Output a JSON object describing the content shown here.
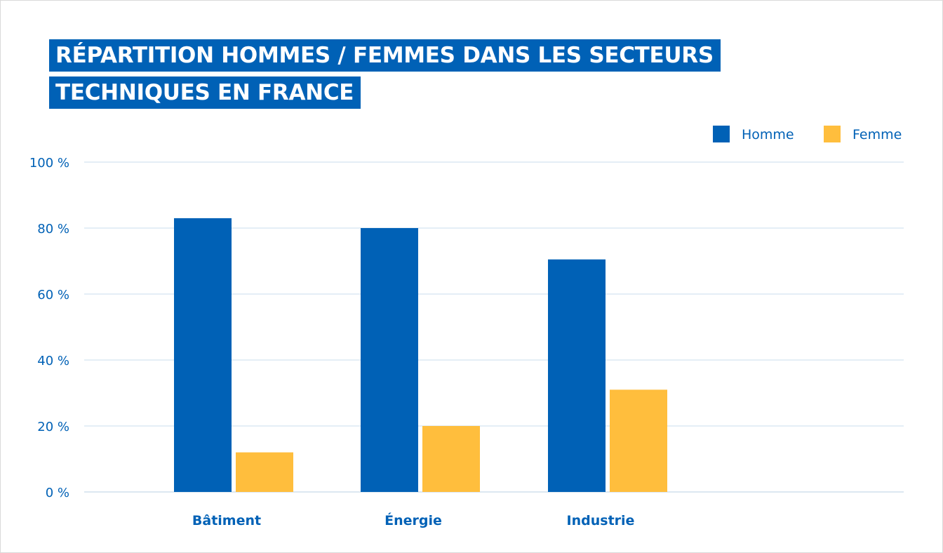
{
  "title_lines": [
    "RÉPARTITION HOMMES / FEMMES DANS LES SECTEURS",
    "TECHNIQUES EN FRANCE"
  ],
  "colors": {
    "homme": "#0061b6",
    "femme": "#ffbe3d",
    "text": "#0061b6",
    "grid": "#c9dcec"
  },
  "chart_data": {
    "type": "bar",
    "title": "RÉPARTITION HOMMES / FEMMES DANS LES SECTEURS TECHNIQUES EN FRANCE",
    "categories": [
      "Bâtiment",
      "Énergie",
      "Industrie"
    ],
    "series": [
      {
        "name": "Homme",
        "values": [
          83,
          80,
          70.5
        ],
        "color": "#0061b6"
      },
      {
        "name": "Femme",
        "values": [
          12,
          20,
          31
        ],
        "color": "#ffbe3d"
      }
    ],
    "yticks": [
      "0 %",
      "20 %",
      "40 %",
      "60 %",
      "80 %",
      "100 %"
    ],
    "ylim": [
      0,
      100
    ],
    "xlabel": "",
    "ylabel": "",
    "grid": true,
    "legend": "top-right"
  }
}
